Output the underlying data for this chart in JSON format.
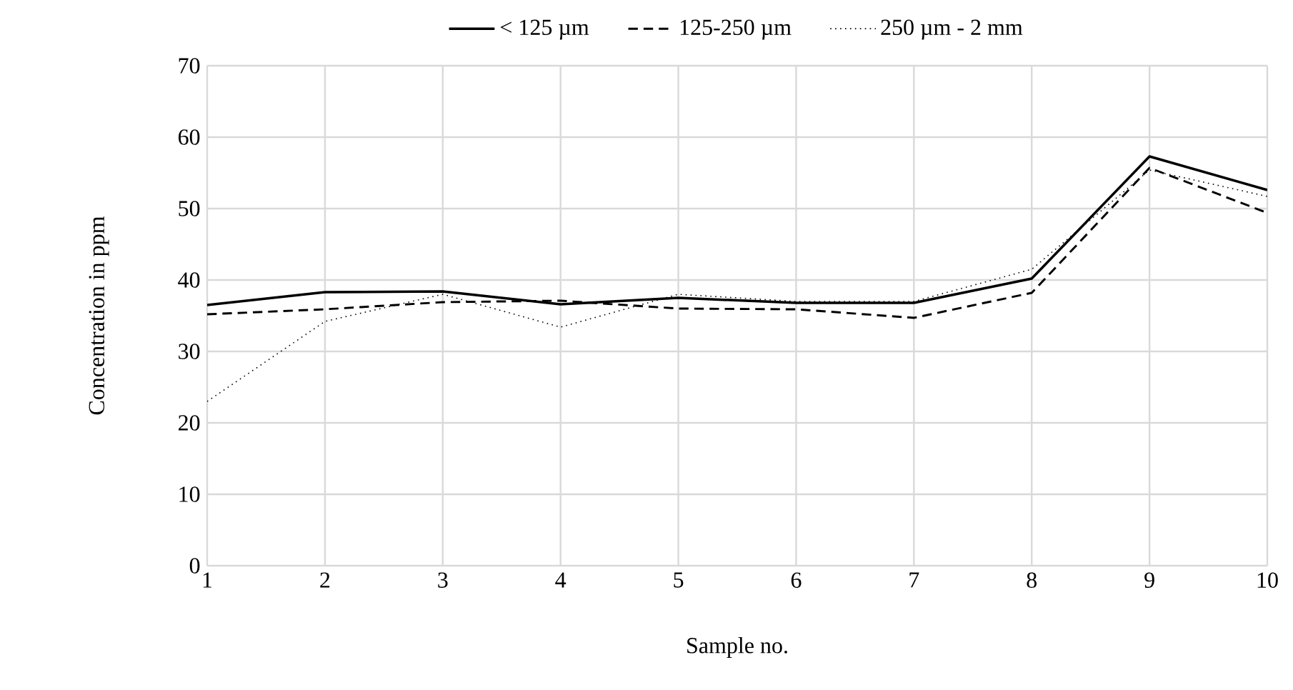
{
  "chart_data": {
    "type": "line",
    "xlabel": "Sample no.",
    "ylabel": "Concentration in ppm",
    "x": [
      1,
      2,
      3,
      4,
      5,
      6,
      7,
      8,
      9,
      10
    ],
    "series": [
      {
        "name": "< 125 µm",
        "color": "#000000",
        "line_style": "solid",
        "values": [
          36.5,
          38.3,
          38.4,
          36.6,
          37.5,
          36.8,
          36.8,
          40.2,
          57.3,
          52.6
        ]
      },
      {
        "name": "125-250 µm",
        "color": "#000000",
        "line_style": "dashed",
        "values": [
          35.2,
          35.9,
          36.9,
          37.1,
          36.0,
          35.9,
          34.7,
          38.2,
          55.7,
          49.4
        ]
      },
      {
        "name": "250 µm - 2 mm",
        "color": "#000000",
        "line_style": "dotted",
        "values": [
          23.0,
          34.2,
          38.0,
          33.4,
          38.0,
          37.0,
          37.0,
          41.5,
          55.4,
          51.7
        ]
      }
    ],
    "xlim": [
      1,
      10
    ],
    "xticks": [
      1,
      2,
      3,
      4,
      5,
      6,
      7,
      8,
      9,
      10
    ],
    "ylim": [
      0,
      70
    ],
    "yticks": [
      0,
      10,
      20,
      30,
      40,
      50,
      60,
      70
    ],
    "grid": true,
    "legend": "top",
    "marker": "none"
  }
}
